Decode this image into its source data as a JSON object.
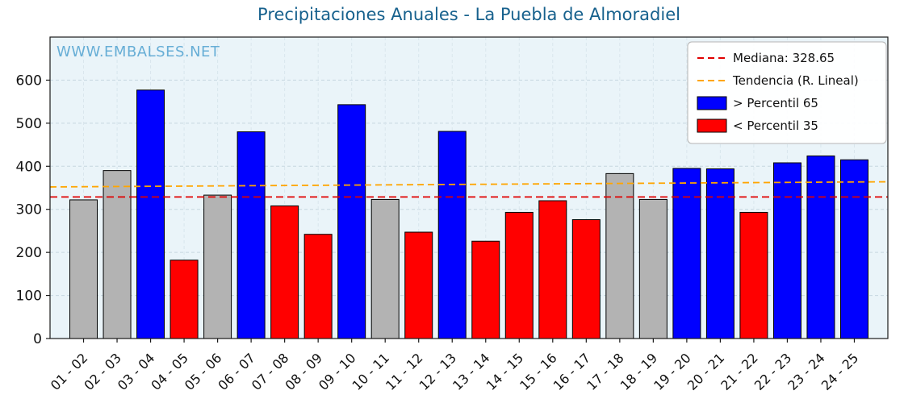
{
  "watermark": "WWW.EMBALSES.NET",
  "chart_data": {
    "type": "bar",
    "title": "Precipitaciones Anuales - La Puebla de Almoradiel",
    "categories": [
      "01 - 02",
      "02 - 03",
      "03 - 04",
      "04 - 05",
      "05 - 06",
      "06 - 07",
      "07 - 08",
      "08 - 09",
      "09 - 10",
      "10 - 11",
      "11 - 12",
      "12 - 13",
      "13 - 14",
      "14 - 15",
      "15 - 16",
      "16 - 17",
      "17 - 18",
      "18 - 19",
      "19 - 20",
      "20 - 21",
      "21 - 22",
      "22 - 23",
      "23 - 24",
      "24 - 25"
    ],
    "values": [
      322,
      390,
      577,
      182,
      333,
      480,
      308,
      242,
      543,
      323,
      247,
      481,
      226,
      293,
      320,
      276,
      383,
      323,
      395,
      394,
      293,
      408,
      424,
      415
    ],
    "classes": [
      "mid",
      "mid",
      "high",
      "low",
      "mid",
      "high",
      "low",
      "low",
      "high",
      "mid",
      "low",
      "high",
      "low",
      "low",
      "low",
      "low",
      "mid",
      "mid",
      "high",
      "high",
      "low",
      "high",
      "high",
      "high"
    ],
    "class_colors": {
      "high": "#0000ff",
      "low": "#ff0000",
      "mid": "#b3b3b3"
    },
    "median": 328.65,
    "median_color": "#e00000",
    "trend": {
      "color": "#ffa500",
      "start_value": 352,
      "end_value": 364
    },
    "ylim": [
      0,
      700
    ],
    "yticks": [
      0,
      100,
      200,
      300,
      400,
      500,
      600
    ],
    "grid": true,
    "legend_position": "upper right",
    "legend": [
      {
        "sample": "dashed-line",
        "color": "#e00000",
        "label": "Mediana: 328.65"
      },
      {
        "sample": "dashed-line",
        "color": "#ffa500",
        "label": "Tendencia (R. Lineal)"
      },
      {
        "sample": "patch",
        "color": "#0000ff",
        "label": " > Percentil 65"
      },
      {
        "sample": "patch",
        "color": "#ff0000",
        "label": " < Percentil 35"
      }
    ],
    "xlabel": "",
    "ylabel": ""
  }
}
